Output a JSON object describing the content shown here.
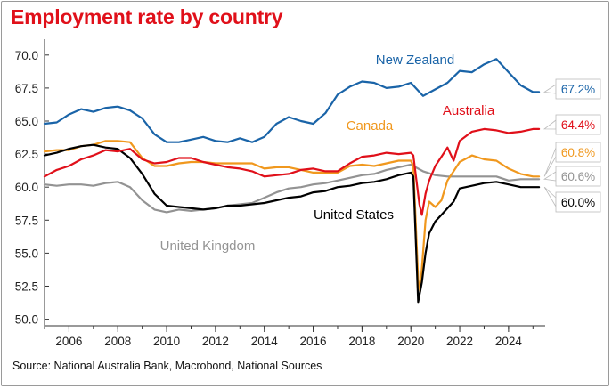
{
  "title": "Employment rate by country",
  "source": "Source: National Australia Bank, Macrobond, National Sources",
  "chart_data": {
    "type": "line",
    "title": "Employment rate by country",
    "xlabel": "",
    "ylabel": "",
    "xlim": [
      2005.0,
      2025.5
    ],
    "ylim": [
      49.5,
      71.2
    ],
    "grid": false,
    "legend": "inline labels",
    "x_ticks": [
      2006,
      2008,
      2010,
      2012,
      2014,
      2016,
      2018,
      2020,
      2022,
      2024
    ],
    "x_tick_labels": [
      "2006",
      "2008",
      "2010",
      "2012",
      "2014",
      "2016",
      "2018",
      "2020",
      "2022",
      "2024"
    ],
    "y_ticks": [
      50.0,
      52.5,
      55.0,
      57.5,
      60.0,
      62.5,
      65.0,
      67.5,
      70.0
    ],
    "y_tick_labels": [
      "50.0",
      "52.5",
      "55.0",
      "57.5",
      "60.0",
      "62.5",
      "65.0",
      "67.5",
      "70.0"
    ],
    "series": [
      {
        "name": "New Zealand",
        "color": "#1a64a8",
        "end_label": "67.2%",
        "points": [
          [
            2005.0,
            64.8
          ],
          [
            2005.5,
            64.9
          ],
          [
            2006.0,
            65.5
          ],
          [
            2006.5,
            65.9
          ],
          [
            2007.0,
            65.7
          ],
          [
            2007.5,
            66.0
          ],
          [
            2008.0,
            66.1
          ],
          [
            2008.5,
            65.8
          ],
          [
            2009.0,
            65.2
          ],
          [
            2009.5,
            64.0
          ],
          [
            2010.0,
            63.4
          ],
          [
            2010.5,
            63.4
          ],
          [
            2011.0,
            63.6
          ],
          [
            2011.5,
            63.8
          ],
          [
            2012.0,
            63.5
          ],
          [
            2012.5,
            63.4
          ],
          [
            2013.0,
            63.7
          ],
          [
            2013.5,
            63.4
          ],
          [
            2014.0,
            63.8
          ],
          [
            2014.5,
            64.8
          ],
          [
            2015.0,
            65.3
          ],
          [
            2015.5,
            65.0
          ],
          [
            2016.0,
            64.8
          ],
          [
            2016.5,
            65.6
          ],
          [
            2017.0,
            67.0
          ],
          [
            2017.5,
            67.6
          ],
          [
            2018.0,
            68.0
          ],
          [
            2018.5,
            67.9
          ],
          [
            2019.0,
            67.5
          ],
          [
            2019.5,
            67.6
          ],
          [
            2020.0,
            67.9
          ],
          [
            2020.5,
            66.9
          ],
          [
            2021.0,
            67.4
          ],
          [
            2021.5,
            67.9
          ],
          [
            2022.0,
            68.8
          ],
          [
            2022.5,
            68.7
          ],
          [
            2023.0,
            69.3
          ],
          [
            2023.5,
            69.7
          ],
          [
            2024.0,
            68.7
          ],
          [
            2024.5,
            67.7
          ],
          [
            2025.0,
            67.2
          ],
          [
            2025.25,
            67.2
          ]
        ]
      },
      {
        "name": "Australia",
        "color": "#e0101a",
        "end_label": "64.4%",
        "points": [
          [
            2005.0,
            60.8
          ],
          [
            2005.5,
            61.3
          ],
          [
            2006.0,
            61.6
          ],
          [
            2006.5,
            62.1
          ],
          [
            2007.0,
            62.4
          ],
          [
            2007.5,
            62.8
          ],
          [
            2008.0,
            62.7
          ],
          [
            2008.5,
            62.9
          ],
          [
            2009.0,
            62.1
          ],
          [
            2009.5,
            61.8
          ],
          [
            2010.0,
            61.9
          ],
          [
            2010.5,
            62.2
          ],
          [
            2011.0,
            62.2
          ],
          [
            2011.5,
            61.9
          ],
          [
            2012.0,
            61.7
          ],
          [
            2012.5,
            61.5
          ],
          [
            2013.0,
            61.4
          ],
          [
            2013.5,
            61.2
          ],
          [
            2014.0,
            60.8
          ],
          [
            2014.5,
            60.9
          ],
          [
            2015.0,
            61.0
          ],
          [
            2015.5,
            61.3
          ],
          [
            2016.0,
            61.4
          ],
          [
            2016.5,
            61.2
          ],
          [
            2017.0,
            61.2
          ],
          [
            2017.5,
            61.8
          ],
          [
            2018.0,
            62.3
          ],
          [
            2018.5,
            62.4
          ],
          [
            2019.0,
            62.6
          ],
          [
            2019.5,
            62.5
          ],
          [
            2020.0,
            62.6
          ],
          [
            2020.1,
            62.4
          ],
          [
            2020.35,
            58.7
          ],
          [
            2020.45,
            57.9
          ],
          [
            2020.6,
            59.5
          ],
          [
            2020.75,
            60.5
          ],
          [
            2021.0,
            61.6
          ],
          [
            2021.25,
            62.3
          ],
          [
            2021.5,
            63.0
          ],
          [
            2021.75,
            62.0
          ],
          [
            2022.0,
            63.5
          ],
          [
            2022.5,
            64.2
          ],
          [
            2023.0,
            64.4
          ],
          [
            2023.5,
            64.3
          ],
          [
            2024.0,
            64.1
          ],
          [
            2024.5,
            64.2
          ],
          [
            2025.0,
            64.4
          ],
          [
            2025.25,
            64.4
          ]
        ]
      },
      {
        "name": "Canada",
        "color": "#f0981e",
        "end_label": "60.8%",
        "points": [
          [
            2005.0,
            62.7
          ],
          [
            2005.5,
            62.8
          ],
          [
            2006.0,
            62.8
          ],
          [
            2006.5,
            63.1
          ],
          [
            2007.0,
            63.2
          ],
          [
            2007.5,
            63.5
          ],
          [
            2008.0,
            63.5
          ],
          [
            2008.5,
            63.4
          ],
          [
            2009.0,
            62.2
          ],
          [
            2009.5,
            61.6
          ],
          [
            2010.0,
            61.6
          ],
          [
            2010.5,
            61.8
          ],
          [
            2011.0,
            61.9
          ],
          [
            2011.5,
            61.9
          ],
          [
            2012.0,
            61.8
          ],
          [
            2012.5,
            61.8
          ],
          [
            2013.0,
            61.8
          ],
          [
            2013.5,
            61.8
          ],
          [
            2014.0,
            61.4
          ],
          [
            2014.5,
            61.5
          ],
          [
            2015.0,
            61.5
          ],
          [
            2015.5,
            61.3
          ],
          [
            2016.0,
            61.1
          ],
          [
            2016.5,
            61.1
          ],
          [
            2017.0,
            61.1
          ],
          [
            2017.5,
            61.6
          ],
          [
            2018.0,
            61.7
          ],
          [
            2018.5,
            61.6
          ],
          [
            2019.0,
            61.8
          ],
          [
            2019.5,
            62.0
          ],
          [
            2020.0,
            62.0
          ],
          [
            2020.1,
            61.6
          ],
          [
            2020.3,
            53.0
          ],
          [
            2020.38,
            52.1
          ],
          [
            2020.6,
            57.5
          ],
          [
            2020.75,
            58.9
          ],
          [
            2021.0,
            58.5
          ],
          [
            2021.25,
            59.0
          ],
          [
            2021.5,
            60.5
          ],
          [
            2021.75,
            61.2
          ],
          [
            2022.0,
            61.9
          ],
          [
            2022.5,
            62.4
          ],
          [
            2023.0,
            62.1
          ],
          [
            2023.5,
            62.0
          ],
          [
            2024.0,
            61.4
          ],
          [
            2024.5,
            61.0
          ],
          [
            2025.0,
            60.8
          ],
          [
            2025.25,
            60.8
          ]
        ]
      },
      {
        "name": "United Kingdom",
        "color": "#939393",
        "end_label": "60.6%",
        "points": [
          [
            2005.0,
            60.2
          ],
          [
            2005.5,
            60.1
          ],
          [
            2006.0,
            60.2
          ],
          [
            2006.5,
            60.2
          ],
          [
            2007.0,
            60.1
          ],
          [
            2007.5,
            60.3
          ],
          [
            2008.0,
            60.4
          ],
          [
            2008.5,
            60.0
          ],
          [
            2009.0,
            59.0
          ],
          [
            2009.5,
            58.3
          ],
          [
            2010.0,
            58.1
          ],
          [
            2010.5,
            58.3
          ],
          [
            2011.0,
            58.2
          ],
          [
            2011.5,
            58.3
          ],
          [
            2012.0,
            58.4
          ],
          [
            2012.5,
            58.6
          ],
          [
            2013.0,
            58.7
          ],
          [
            2013.5,
            58.8
          ],
          [
            2014.0,
            59.2
          ],
          [
            2014.5,
            59.6
          ],
          [
            2015.0,
            59.9
          ],
          [
            2015.5,
            60.0
          ],
          [
            2016.0,
            60.2
          ],
          [
            2016.5,
            60.3
          ],
          [
            2017.0,
            60.5
          ],
          [
            2017.5,
            60.7
          ],
          [
            2018.0,
            60.9
          ],
          [
            2018.5,
            61.0
          ],
          [
            2019.0,
            61.3
          ],
          [
            2019.5,
            61.5
          ],
          [
            2020.0,
            61.7
          ],
          [
            2020.5,
            61.2
          ],
          [
            2021.0,
            60.9
          ],
          [
            2021.5,
            60.8
          ],
          [
            2022.0,
            60.8
          ],
          [
            2022.5,
            60.8
          ],
          [
            2023.0,
            60.8
          ],
          [
            2023.5,
            60.8
          ],
          [
            2024.0,
            60.5
          ],
          [
            2024.5,
            60.6
          ],
          [
            2025.0,
            60.6
          ],
          [
            2025.25,
            60.6
          ]
        ]
      },
      {
        "name": "United States",
        "color": "#000000",
        "end_label": "60.0%",
        "points": [
          [
            2005.0,
            62.4
          ],
          [
            2005.5,
            62.6
          ],
          [
            2006.0,
            62.9
          ],
          [
            2006.5,
            63.1
          ],
          [
            2007.0,
            63.2
          ],
          [
            2007.5,
            63.0
          ],
          [
            2008.0,
            62.9
          ],
          [
            2008.5,
            62.2
          ],
          [
            2009.0,
            61.0
          ],
          [
            2009.5,
            59.5
          ],
          [
            2010.0,
            58.6
          ],
          [
            2010.5,
            58.5
          ],
          [
            2011.0,
            58.4
          ],
          [
            2011.5,
            58.3
          ],
          [
            2012.0,
            58.4
          ],
          [
            2012.5,
            58.6
          ],
          [
            2013.0,
            58.6
          ],
          [
            2013.5,
            58.7
          ],
          [
            2014.0,
            58.8
          ],
          [
            2014.5,
            59.0
          ],
          [
            2015.0,
            59.2
          ],
          [
            2015.5,
            59.3
          ],
          [
            2016.0,
            59.6
          ],
          [
            2016.5,
            59.7
          ],
          [
            2017.0,
            60.0
          ],
          [
            2017.5,
            60.1
          ],
          [
            2018.0,
            60.3
          ],
          [
            2018.5,
            60.4
          ],
          [
            2019.0,
            60.6
          ],
          [
            2019.5,
            60.9
          ],
          [
            2020.0,
            61.1
          ],
          [
            2020.1,
            60.8
          ],
          [
            2020.3,
            51.3
          ],
          [
            2020.45,
            52.8
          ],
          [
            2020.6,
            55.0
          ],
          [
            2020.75,
            56.5
          ],
          [
            2021.0,
            57.4
          ],
          [
            2021.25,
            57.9
          ],
          [
            2021.5,
            58.4
          ],
          [
            2021.75,
            58.9
          ],
          [
            2022.0,
            59.9
          ],
          [
            2022.5,
            60.1
          ],
          [
            2023.0,
            60.3
          ],
          [
            2023.5,
            60.4
          ],
          [
            2024.0,
            60.2
          ],
          [
            2024.5,
            60.0
          ],
          [
            2025.0,
            60.0
          ],
          [
            2025.25,
            60.0
          ]
        ]
      }
    ]
  }
}
